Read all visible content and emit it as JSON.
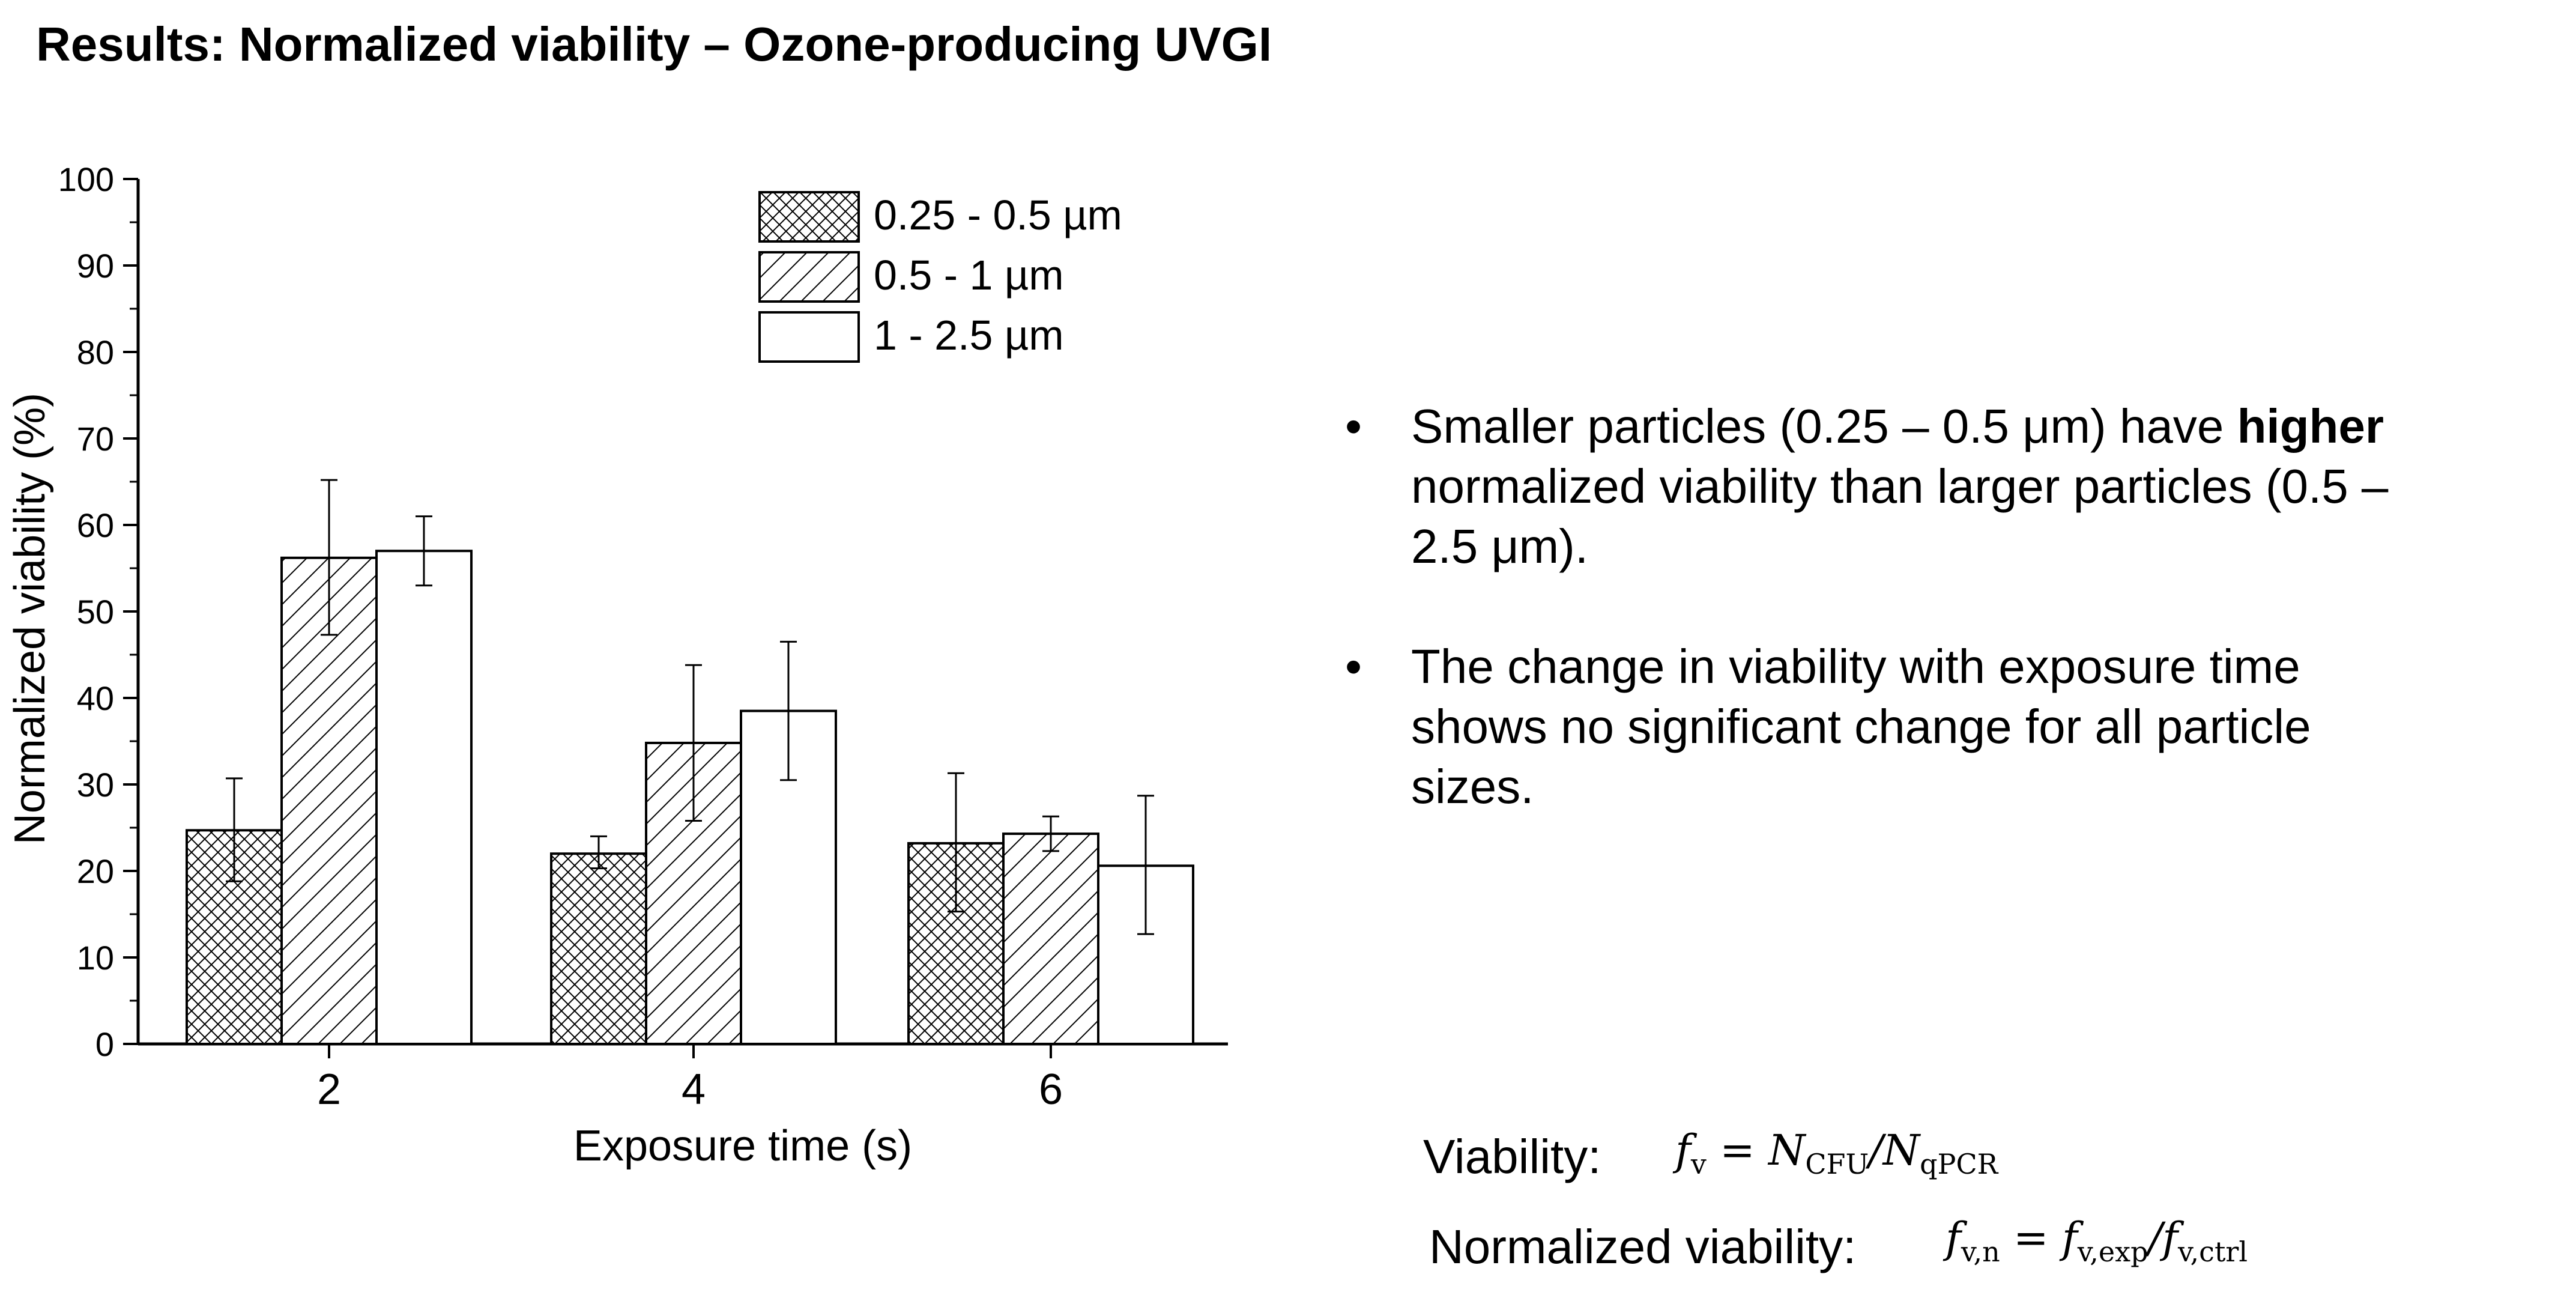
{
  "slide": {
    "title": "Results: Normalized viability – Ozone-producing UVGI"
  },
  "chart_data": {
    "type": "bar",
    "categories": [
      "2",
      "4",
      "6"
    ],
    "xlabel": "Exposure time (s)",
    "ylabel": "Normalized viability (%)",
    "ylim": [
      0,
      100
    ],
    "yticks": [
      0,
      10,
      20,
      30,
      40,
      50,
      60,
      70,
      80,
      90,
      100
    ],
    "legend_position": "top",
    "series": [
      {
        "name": "0.25 - 0.5 µm",
        "pattern": "crosshatch",
        "values": [
          24.7,
          22.0,
          23.2
        ],
        "err_low": [
          18.8,
          20.3,
          15.3
        ],
        "err_high": [
          30.7,
          24.0,
          31.3
        ]
      },
      {
        "name": "0.5 - 1 µm",
        "pattern": "diagonal",
        "values": [
          56.2,
          34.8,
          24.3
        ],
        "err_low": [
          47.3,
          25.8,
          22.3
        ],
        "err_high": [
          65.2,
          43.8,
          26.3
        ]
      },
      {
        "name": "1 - 2.5 µm",
        "pattern": "none",
        "values": [
          57.0,
          38.5,
          20.6
        ],
        "err_low": [
          53.0,
          30.5,
          12.7
        ],
        "err_high": [
          61.0,
          46.5,
          28.7
        ]
      }
    ]
  },
  "bullets": [
    {
      "symbol": "•",
      "pre": "Smaller particles (0.25 – 0.5 μm) have",
      "bold": "higher",
      "post": " normalized viability than larger particles (0.5 – 2.5 μm)."
    },
    {
      "symbol": "•",
      "pre": "The change in viability with exposure time shows no significant change for all particle sizes.",
      "bold": "",
      "post": ""
    }
  ],
  "formulas": {
    "viability_label": "Viability:",
    "normalized_label": "Normalized viability:"
  }
}
